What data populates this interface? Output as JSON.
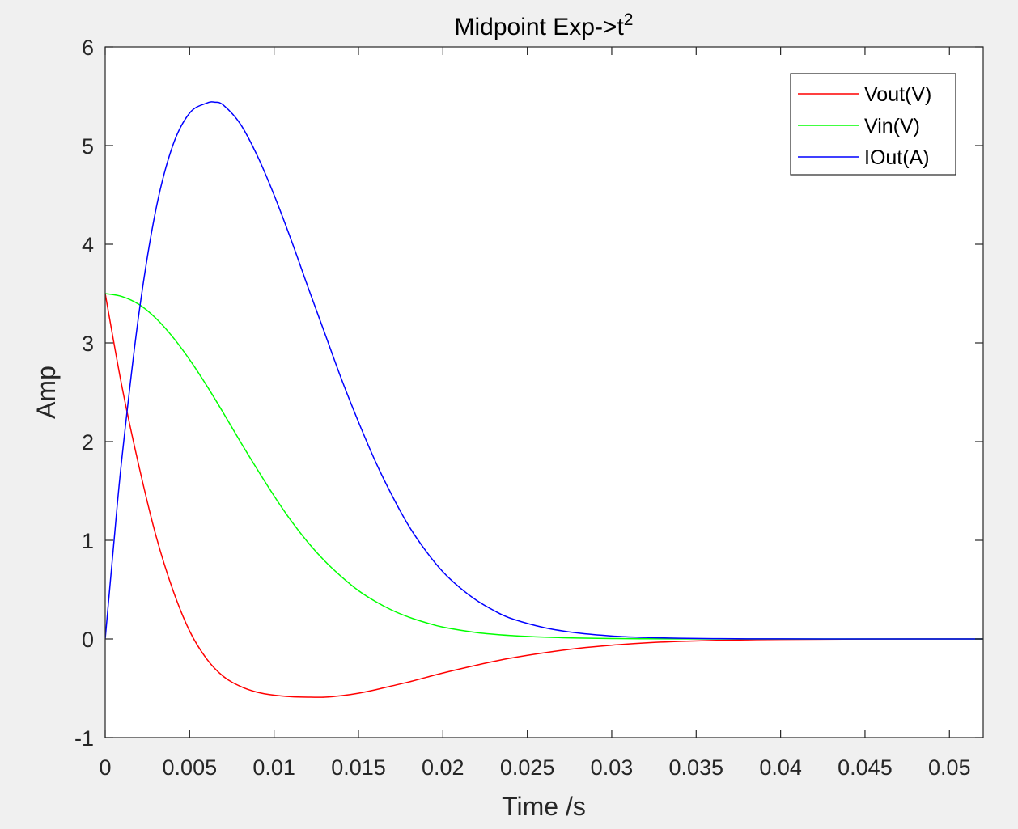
{
  "chart_data": {
    "type": "line",
    "title": "Midpoint Exp->t",
    "title_superscript": "2",
    "xlabel": "Time /s",
    "ylabel": "Amp",
    "xlim": [
      0,
      0.052
    ],
    "ylim": [
      -1,
      6
    ],
    "x_ticks": [
      0,
      0.005,
      0.01,
      0.015,
      0.02,
      0.025,
      0.03,
      0.035,
      0.04,
      0.045,
      0.05
    ],
    "x_tick_labels": [
      "0",
      "0.005",
      "0.01",
      "0.015",
      "0.02",
      "0.025",
      "0.03",
      "0.035",
      "0.04",
      "0.045",
      "0.05"
    ],
    "y_ticks": [
      -1,
      0,
      1,
      2,
      3,
      4,
      5,
      6
    ],
    "y_tick_labels": [
      "-1",
      "0",
      "1",
      "2",
      "3",
      "4",
      "5",
      "6"
    ],
    "grid": false,
    "legend_position": "top-right",
    "series": [
      {
        "name": "Vout(V)",
        "color": "#ff0000",
        "x": [
          0,
          0.001,
          0.002,
          0.003,
          0.004,
          0.005,
          0.006,
          0.007,
          0.008,
          0.009,
          0.01,
          0.011,
          0.012,
          0.013,
          0.014,
          0.015,
          0.016,
          0.017,
          0.018,
          0.019,
          0.02,
          0.022,
          0.024,
          0.026,
          0.028,
          0.03,
          0.032,
          0.034,
          0.036,
          0.038,
          0.04,
          0.045,
          0.052
        ],
        "y": [
          3.5,
          2.55,
          1.75,
          1.05,
          0.5,
          0.08,
          -0.2,
          -0.38,
          -0.48,
          -0.54,
          -0.57,
          -0.585,
          -0.59,
          -0.59,
          -0.575,
          -0.55,
          -0.515,
          -0.475,
          -0.435,
          -0.39,
          -0.345,
          -0.265,
          -0.195,
          -0.14,
          -0.095,
          -0.063,
          -0.04,
          -0.025,
          -0.015,
          -0.009,
          -0.005,
          -0.001,
          0
        ]
      },
      {
        "name": "Vin(V)",
        "color": "#00ff00",
        "x": [
          0,
          0.001,
          0.002,
          0.003,
          0.004,
          0.005,
          0.006,
          0.007,
          0.008,
          0.009,
          0.01,
          0.011,
          0.012,
          0.013,
          0.014,
          0.015,
          0.016,
          0.017,
          0.018,
          0.019,
          0.02,
          0.022,
          0.024,
          0.026,
          0.028,
          0.03,
          0.032,
          0.034,
          0.036,
          0.04,
          0.045,
          0.052
        ],
        "y": [
          3.5,
          3.47,
          3.39,
          3.25,
          3.06,
          2.83,
          2.57,
          2.29,
          2.0,
          1.72,
          1.45,
          1.2,
          0.98,
          0.79,
          0.63,
          0.49,
          0.38,
          0.29,
          0.22,
          0.165,
          0.12,
          0.065,
          0.035,
          0.018,
          0.009,
          0.004,
          0.002,
          0.001,
          0,
          0,
          0,
          0
        ]
      },
      {
        "name": "IOut(A)",
        "color": "#0000ff",
        "x": [
          0,
          0.0005,
          0.001,
          0.002,
          0.003,
          0.004,
          0.005,
          0.006,
          0.0065,
          0.007,
          0.008,
          0.009,
          0.01,
          0.011,
          0.012,
          0.013,
          0.014,
          0.015,
          0.016,
          0.017,
          0.018,
          0.019,
          0.02,
          0.021,
          0.022,
          0.023,
          0.024,
          0.026,
          0.028,
          0.03,
          0.032,
          0.034,
          0.036,
          0.038,
          0.04,
          0.045,
          0.052
        ],
        "y": [
          0,
          0.95,
          1.85,
          3.3,
          4.35,
          5.0,
          5.33,
          5.43,
          5.44,
          5.41,
          5.22,
          4.9,
          4.5,
          4.05,
          3.57,
          3.1,
          2.63,
          2.2,
          1.8,
          1.45,
          1.14,
          0.89,
          0.68,
          0.52,
          0.39,
          0.29,
          0.21,
          0.115,
          0.06,
          0.03,
          0.015,
          0.007,
          0.003,
          0.0015,
          0.0007,
          0,
          0
        ]
      }
    ]
  }
}
